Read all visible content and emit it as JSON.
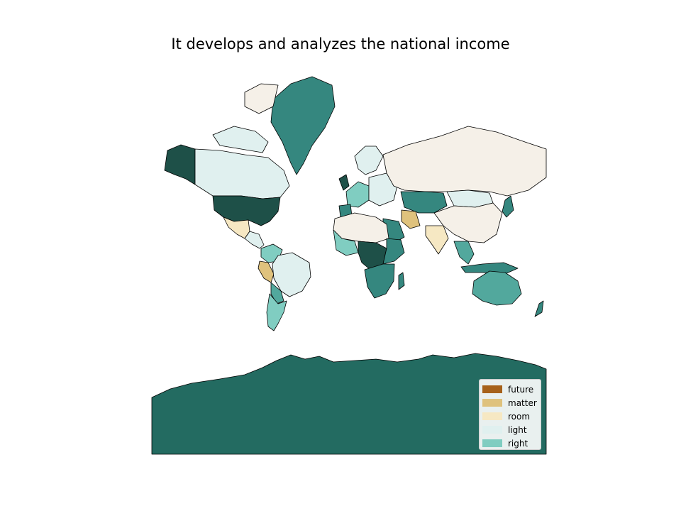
{
  "title": "It develops and analyzes the national income",
  "colors": {
    "ocean": "#ffffff",
    "border": "#000000",
    "future": "#a6611a",
    "matter": "#dfc27d",
    "room": "#f6e8c3",
    "light": "#e0f0ef",
    "right": "#80cdc1",
    "mid_teal": "#52a89d",
    "teal": "#35877f",
    "dark_teal": "#236b61",
    "darkest_teal": "#1e5048",
    "pale": "#f5f0e8"
  },
  "legend": {
    "items": [
      {
        "label": "future",
        "color": "#a6611a"
      },
      {
        "label": "matter",
        "color": "#dfc27d"
      },
      {
        "label": "room",
        "color": "#f6e8c3"
      },
      {
        "label": "light",
        "color": "#e0f0ef"
      },
      {
        "label": "right",
        "color": "#80cdc1"
      }
    ]
  }
}
